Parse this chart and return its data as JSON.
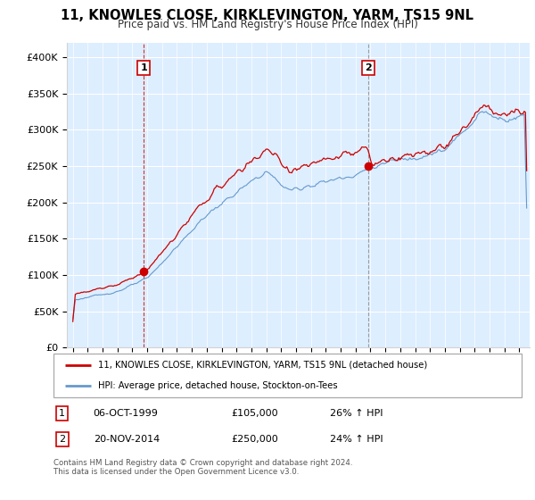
{
  "title": "11, KNOWLES CLOSE, KIRKLEVINGTON, YARM, TS15 9NL",
  "subtitle": "Price paid vs. HM Land Registry's House Price Index (HPI)",
  "red_label": "11, KNOWLES CLOSE, KIRKLEVINGTON, YARM, TS15 9NL (detached house)",
  "blue_label": "HPI: Average price, detached house, Stockton-on-Tees",
  "annotation1": {
    "num": "1",
    "date": "06-OCT-1999",
    "price": "£105,000",
    "change": "26% ↑ HPI"
  },
  "annotation2": {
    "num": "2",
    "date": "20-NOV-2014",
    "price": "£250,000",
    "change": "24% ↑ HPI"
  },
  "footer": "Contains HM Land Registry data © Crown copyright and database right 2024.\nThis data is licensed under the Open Government Licence v3.0.",
  "red_color": "#cc0000",
  "blue_color": "#6699cc",
  "bg_color": "#ddeeff",
  "vline_color": "#cc0000",
  "ylim": [
    0,
    420000
  ],
  "yticks": [
    0,
    50000,
    100000,
    150000,
    200000,
    250000,
    300000,
    350000,
    400000
  ],
  "start_year": 1995,
  "end_year": 2025,
  "sale1_year": 1999.77,
  "sale1_price": 105000,
  "sale2_year": 2014.88,
  "sale2_price": 250000
}
